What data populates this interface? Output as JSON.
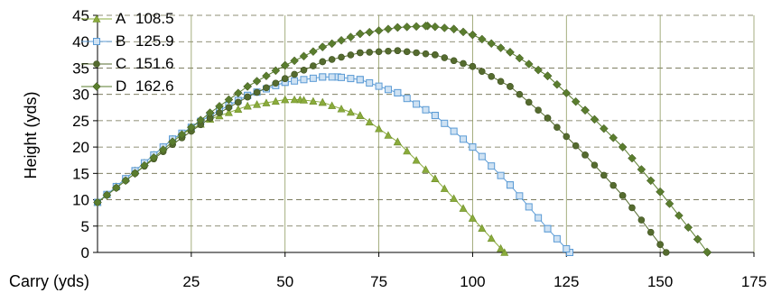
{
  "chart_data": {
    "type": "scatter",
    "title": "",
    "xlabel": "Carry (yds)",
    "ylabel": "Height (yds)",
    "xlim": [
      0,
      175
    ],
    "ylim": [
      0,
      45
    ],
    "x_ticks": [
      25,
      50,
      75,
      100,
      125,
      150,
      175
    ],
    "y_ticks": [
      0,
      5,
      10,
      15,
      20,
      25,
      30,
      35,
      40,
      45
    ],
    "grid": {
      "x": true,
      "y": true,
      "y_style": "dashed"
    },
    "legend": {
      "placement": "top-left"
    },
    "series": [
      {
        "name": "A",
        "carry": "108.5",
        "color": "#8aab3c",
        "marker": "triangle",
        "x": [
          0,
          10,
          20,
          30,
          40,
          50,
          54,
          60,
          70,
          80,
          90,
          100,
          108.5
        ],
        "y": [
          9.5,
          15.5,
          21.5,
          25.3,
          27.8,
          29.0,
          29.0,
          28.5,
          26.0,
          21.0,
          14.0,
          6.5,
          0
        ]
      },
      {
        "name": "B",
        "carry": "125.9",
        "color": "#5b9bd5",
        "marker": "square",
        "x": [
          0,
          10,
          20,
          30,
          40,
          50,
          60,
          64,
          70,
          80,
          90,
          100,
          110,
          120,
          125.9
        ],
        "y": [
          9.5,
          15.5,
          21.5,
          26.0,
          29.8,
          32.3,
          33.3,
          33.3,
          32.8,
          30.3,
          26.0,
          20.0,
          12.8,
          4.5,
          0
        ]
      },
      {
        "name": "C",
        "carry": "151.6",
        "color": "#556b2f",
        "marker": "circle",
        "x": [
          0,
          10,
          20,
          30,
          40,
          50,
          60,
          70,
          80,
          90,
          100,
          110,
          120,
          130,
          140,
          150,
          151.6
        ],
        "y": [
          9.5,
          15.0,
          20.5,
          25.5,
          29.5,
          33.0,
          36.2,
          37.9,
          38.3,
          37.5,
          35.3,
          31.5,
          25.5,
          18.5,
          10.8,
          1.5,
          0
        ]
      },
      {
        "name": "D",
        "carry": "162.6",
        "color": "#5a7d2e",
        "marker": "diamond",
        "x": [
          0,
          10,
          20,
          30,
          40,
          50,
          60,
          70,
          80,
          88,
          95,
          100,
          110,
          120,
          130,
          140,
          150,
          160,
          162.6
        ],
        "y": [
          9.5,
          15.0,
          21.0,
          26.5,
          31.5,
          35.5,
          39.0,
          41.5,
          42.7,
          43.0,
          42.4,
          41.3,
          38.0,
          33.5,
          27.0,
          20.0,
          11.5,
          2.5,
          0
        ]
      }
    ]
  }
}
